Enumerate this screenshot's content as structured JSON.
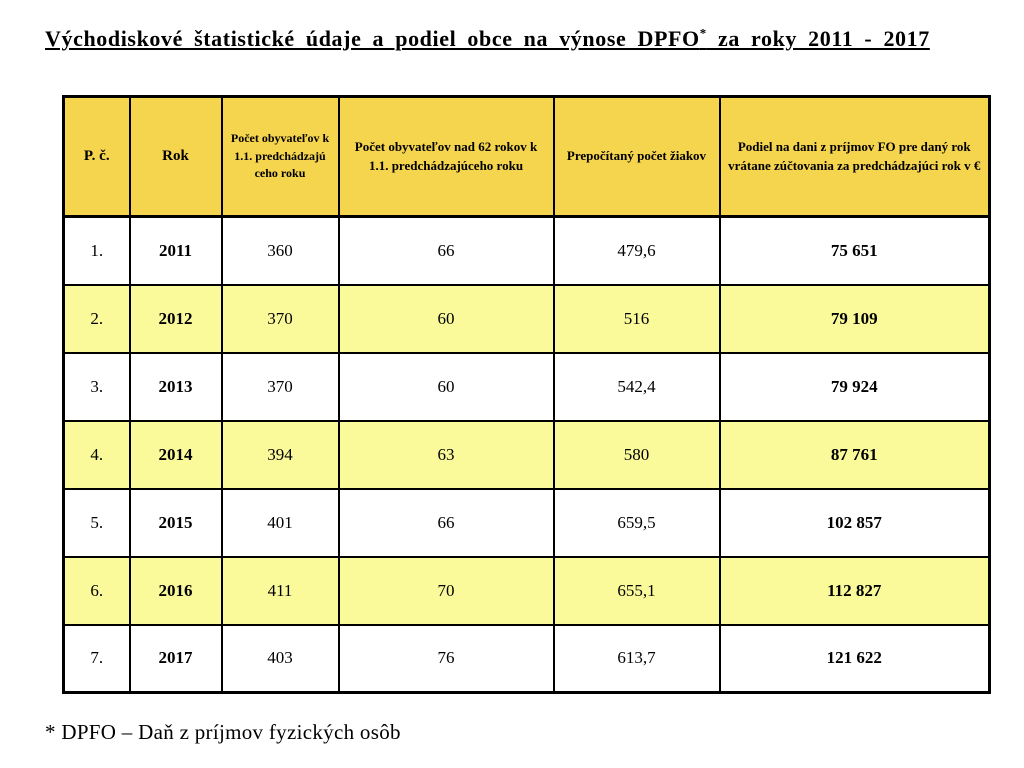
{
  "title": {
    "main": "Východiskové štatistické údaje a podiel obce na výnose DPFO",
    "superscript": "*",
    "suffix": " za roky 2011 - 2017"
  },
  "table": {
    "headers": [
      "P. č.",
      "Rok",
      "Počet obyvateľov k 1.1. predchádzajú ceho roku",
      "Počet obyvateľov nad 62 rokov k 1.1. predchádzajúceho roku",
      "Prepočítaný počet žiakov",
      "Podiel na dani z príjmov FO pre daný rok vrátane zúčtovania za predchádzajúci rok v €"
    ],
    "rows": [
      [
        "1.",
        "2011",
        "360",
        "66",
        "479,6",
        "75 651"
      ],
      [
        "2.",
        "2012",
        "370",
        "60",
        "516",
        "79 109"
      ],
      [
        "3.",
        "2013",
        "370",
        "60",
        "542,4",
        "79 924"
      ],
      [
        "4.",
        "2014",
        "394",
        "63",
        "580",
        "87 761"
      ],
      [
        "5.",
        "2015",
        "401",
        "66",
        "659,5",
        "102 857"
      ],
      [
        "6.",
        "2016",
        "411",
        "70",
        "655,1",
        "112 827"
      ],
      [
        "7.",
        "2017",
        "403",
        "76",
        "613,7",
        "121 622"
      ]
    ]
  },
  "footnote": "* DPFO – Daň z príjmov fyzických osôb",
  "colors": {
    "header_bg": "#F5D44E",
    "row_alt_bg": "#FAFA9B",
    "row_bg": "#FFFFFF",
    "border": "#000000",
    "text": "#000000"
  }
}
